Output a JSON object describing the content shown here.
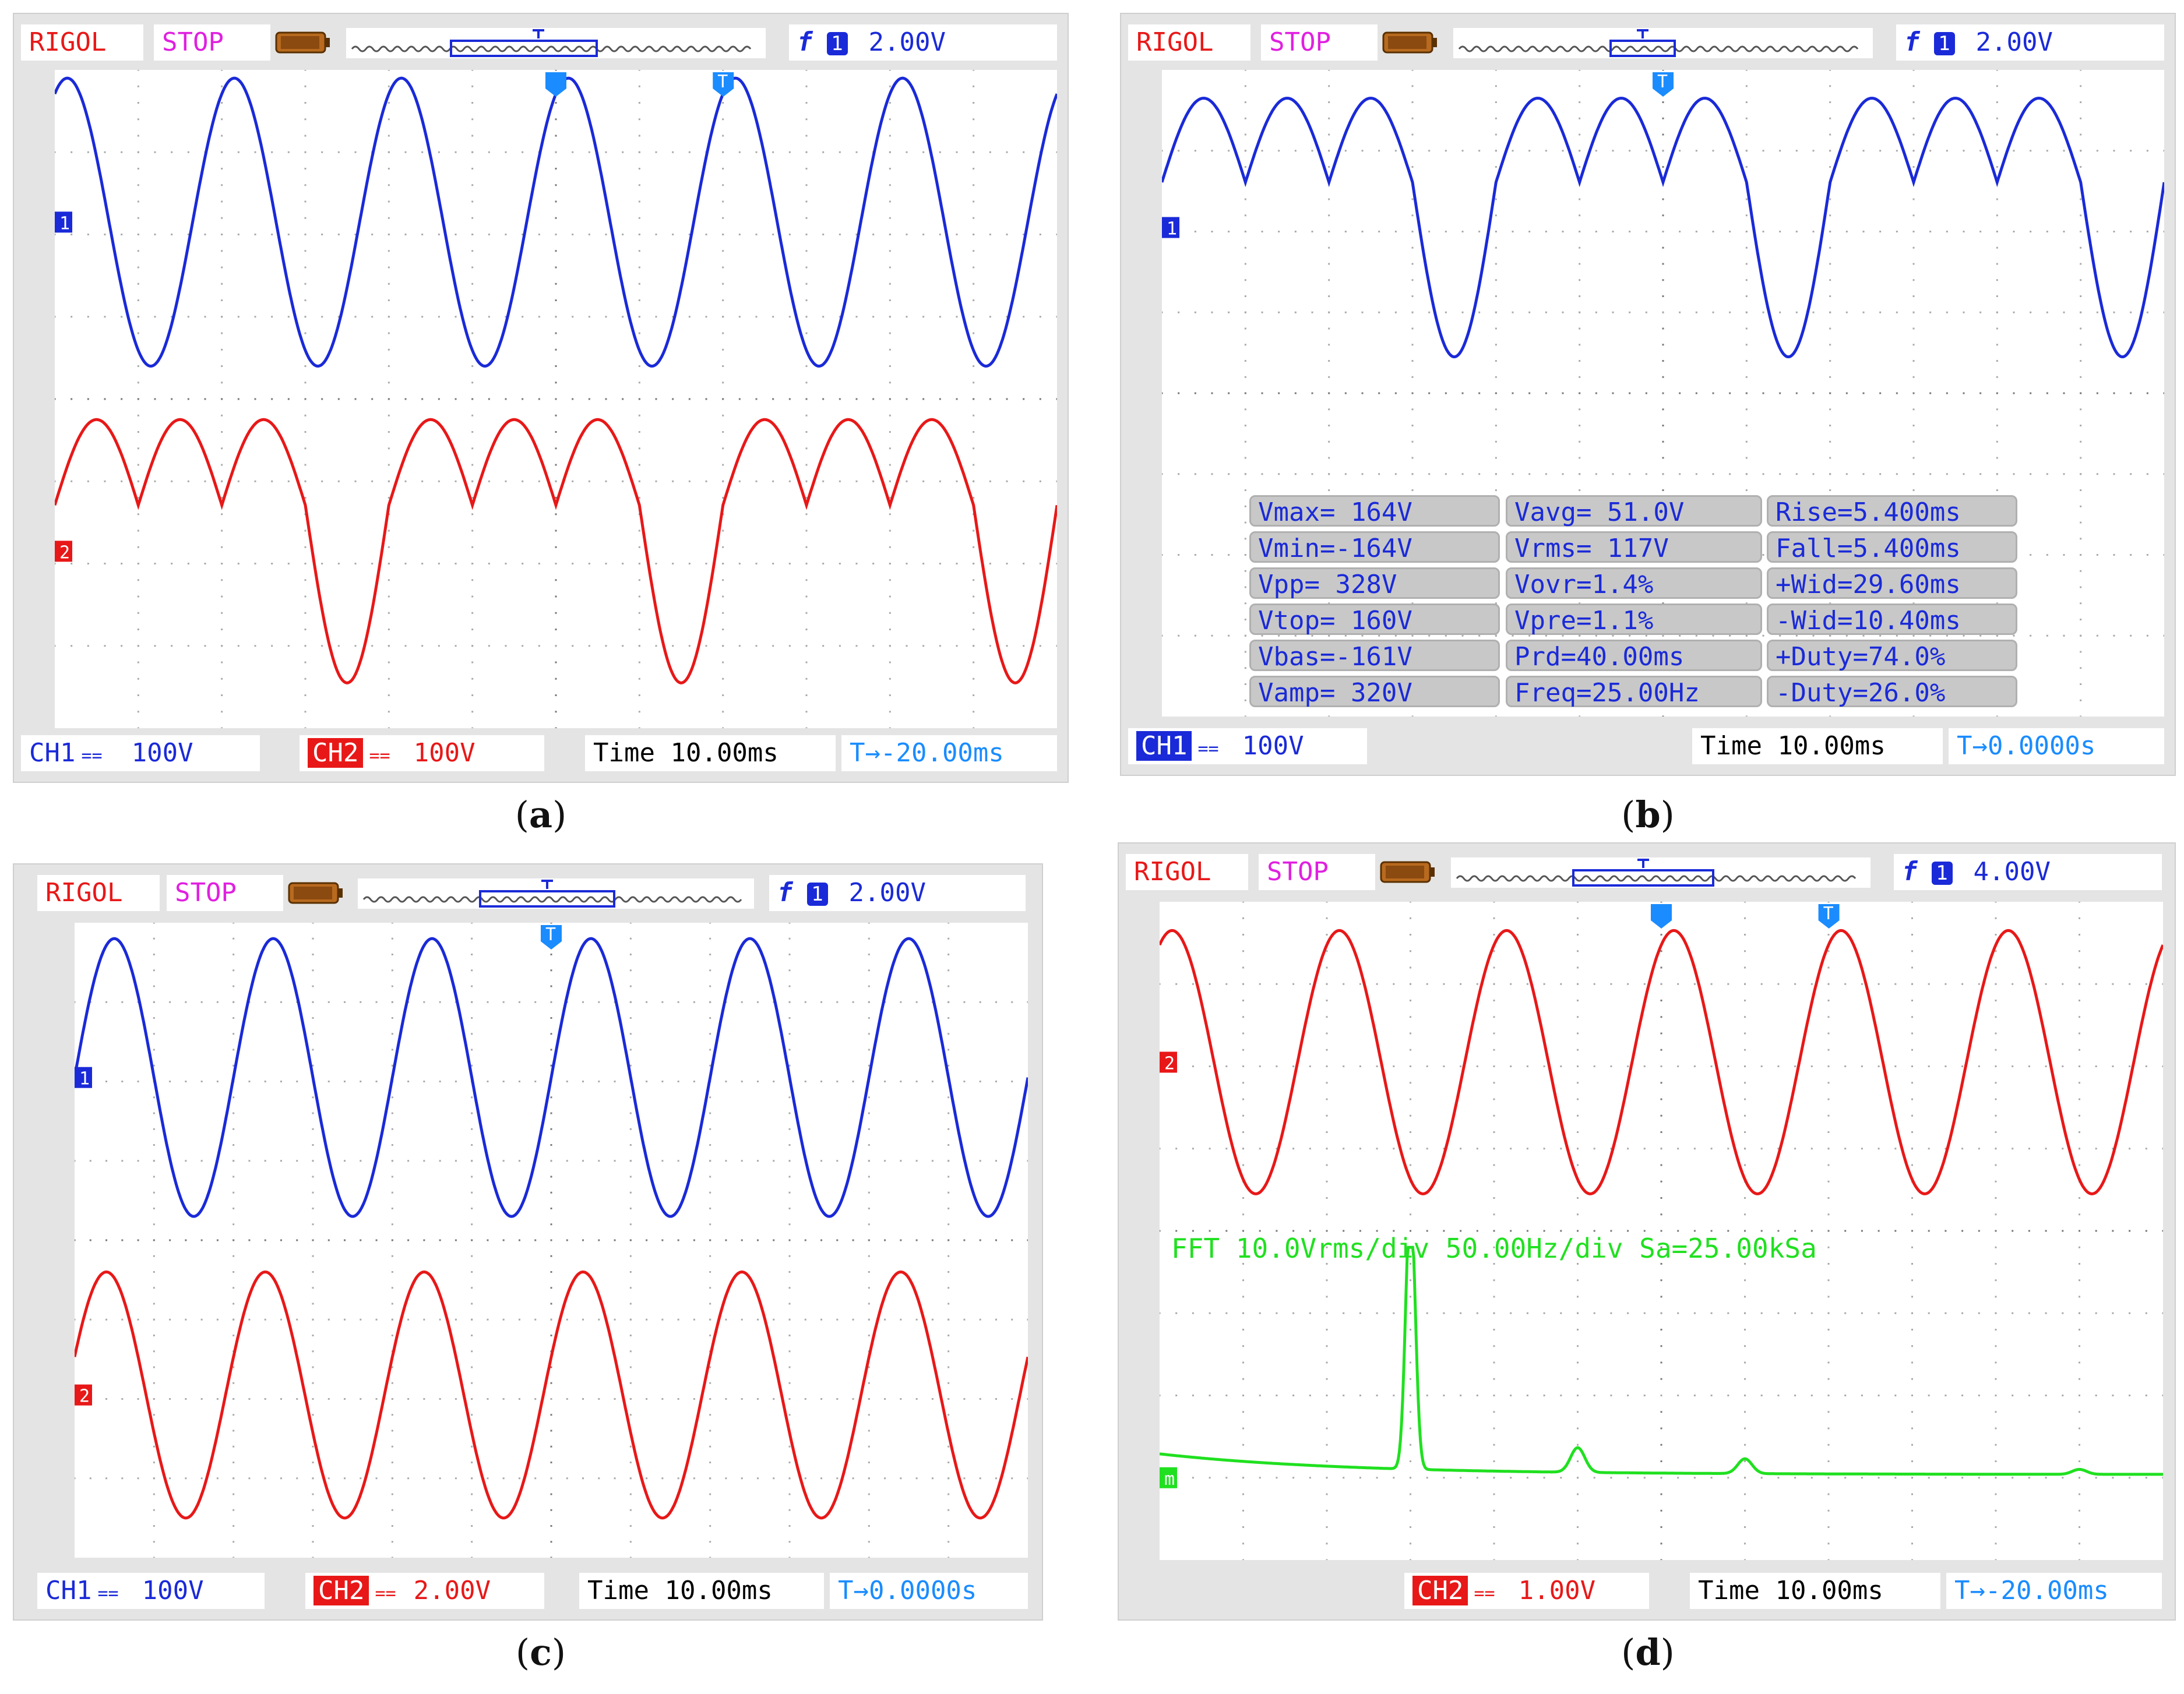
{
  "colors": {
    "ch1": "#1a2ad8",
    "ch2": "#e81818",
    "fft": "#20e020",
    "trigger": "#1a8cff"
  },
  "panels": {
    "a": {
      "caption_open": "(",
      "caption_letter": "a",
      "caption_close": ")",
      "brand": "RIGOL",
      "state": "STOP",
      "trig_edge": "f",
      "trig_src": "1",
      "trig_level": "2.00V",
      "ch1_label": "CH1",
      "ch1_coupling": "==",
      "ch1_scale": "100V",
      "ch2_label": "CH2",
      "ch2_coupling": "==",
      "ch2_scale": "100V",
      "time_label": "Time",
      "time_scale": "10.00ms",
      "trig_offset": "T→-20.00ms",
      "marker_1": "1",
      "marker_2": "2",
      "trig_marker": "T"
    },
    "b": {
      "caption_open": "(",
      "caption_letter": "b",
      "caption_close": ")",
      "brand": "RIGOL",
      "state": "STOP",
      "trig_edge": "f",
      "trig_src": "1",
      "trig_level": "2.00V",
      "ch1_label": "CH1",
      "ch1_coupling": "==",
      "ch1_scale": "100V",
      "time_label": "Time",
      "time_scale": "10.00ms",
      "trig_offset": "T→0.0000s",
      "marker_1": "1",
      "trig_marker": "T",
      "measurements": [
        [
          "Vmax= 164V",
          "Vavg= 51.0V",
          "Rise=5.400ms"
        ],
        [
          "Vmin=-164V",
          "Vrms= 117V",
          "Fall=5.400ms"
        ],
        [
          "Vpp= 328V",
          "Vovr=1.4%",
          "+Wid=29.60ms"
        ],
        [
          "Vtop= 160V",
          "Vpre=1.1%",
          "-Wid=10.40ms"
        ],
        [
          "Vbas=-161V",
          "Prd=40.00ms",
          "+Duty=74.0%"
        ],
        [
          "Vamp= 320V",
          "Freq=25.00Hz",
          "-Duty=26.0%"
        ]
      ]
    },
    "c": {
      "caption_open": "(",
      "caption_letter": "c",
      "caption_close": ")",
      "brand": "RIGOL",
      "state": "STOP",
      "trig_edge": "f",
      "trig_src": "1",
      "trig_level": "2.00V",
      "ch1_label": "CH1",
      "ch1_coupling": "==",
      "ch1_scale": "100V",
      "ch2_label": "CH2",
      "ch2_coupling": "==",
      "ch2_scale": "2.00V",
      "time_label": "Time",
      "time_scale": "10.00ms",
      "trig_offset": "T→0.0000s",
      "marker_1": "1",
      "marker_2": "2",
      "trig_marker": "T"
    },
    "d": {
      "caption_open": "(",
      "caption_letter": "d",
      "caption_close": ")",
      "brand": "RIGOL",
      "state": "STOP",
      "trig_edge": "f",
      "trig_src": "1",
      "trig_level": "4.00V",
      "ch2_label": "CH2",
      "ch2_coupling": "==",
      "ch2_scale": "1.00V",
      "time_label": "Time",
      "time_scale": "10.00ms",
      "trig_offset": "T→-20.00ms",
      "marker_2": "2",
      "marker_m": "m",
      "trig_marker": "T",
      "fft_text": "FFT  10.0Vrms/div 50.00Hz/div Sa=25.00kSa"
    }
  },
  "chart_data": [
    {
      "type": "line",
      "panel": "a",
      "x_unit": "div (10.00ms/div)",
      "xlim": [
        0,
        12
      ],
      "series": [
        {
          "name": "CH1",
          "color": "#1a2ad8",
          "shape": "sine",
          "period_div": 2,
          "amplitude_div": 1.75,
          "center_div": 0.0,
          "phase_div": 0.35
        },
        {
          "name": "CH2",
          "color": "#e81818",
          "shape": "three-pulse",
          "period_div": 4,
          "amplitude_div": 1.6,
          "center_div": 0.0,
          "phase_div": 0.0
        }
      ]
    },
    {
      "type": "line",
      "panel": "b",
      "x_unit": "div (10.00ms/div)",
      "xlim": [
        0,
        12
      ],
      "series": [
        {
          "name": "CH1",
          "color": "#1a2ad8",
          "shape": "three-pulse",
          "period_div": 4,
          "amplitude_div": 1.6,
          "center_div": 0.0,
          "phase_div": 0.0
        }
      ]
    },
    {
      "type": "line",
      "panel": "c",
      "x_unit": "div (10.00ms/div)",
      "xlim": [
        0,
        12
      ],
      "series": [
        {
          "name": "CH1",
          "color": "#1a2ad8",
          "shape": "sine",
          "period_div": 2,
          "amplitude_div": 1.75,
          "center_div": 0.0,
          "phase_div": 0.0
        },
        {
          "name": "CH2",
          "color": "#e81818",
          "shape": "sine",
          "period_div": 2,
          "amplitude_div": 1.55,
          "center_div": 0.0,
          "phase_div": 0.1
        }
      ]
    },
    {
      "type": "line",
      "panel": "d",
      "x_unit": "div (10.00ms/div)",
      "xlim": [
        0,
        12
      ],
      "series": [
        {
          "name": "CH2",
          "color": "#e81818",
          "shape": "sine",
          "period_div": 2,
          "amplitude_div": 1.6,
          "center_div": 0.0,
          "phase_div": 0.35
        },
        {
          "name": "FFT",
          "color": "#20e020",
          "shape": "fft",
          "peaks_div": [
            [
              3.0,
              3.3
            ],
            [
              5.0,
              0.3
            ],
            [
              7.0,
              0.18
            ],
            [
              11.0,
              0.06
            ]
          ]
        }
      ]
    }
  ]
}
